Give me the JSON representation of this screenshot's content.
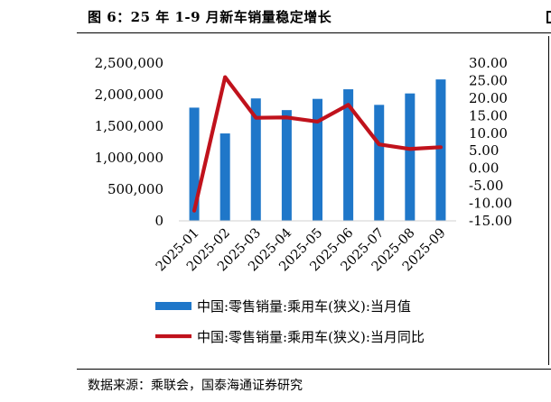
{
  "figure": {
    "title": "图 6：25 年 1-9 月新车销量稳定增长",
    "source": "数据来源：乘联会，国泰海通证券研究"
  },
  "chart_data": {
    "type": "bar",
    "categories": [
      "2025-01",
      "2025-02",
      "2025-03",
      "2025-04",
      "2025-05",
      "2025-06",
      "2025-07",
      "2025-08",
      "2025-09"
    ],
    "series": [
      {
        "name": "中国:零售销量:乘用车(狭义):当月值",
        "type": "bar",
        "axis": "left",
        "color": "#1f77c9",
        "values": [
          1794000,
          1385000,
          1940000,
          1755000,
          1933000,
          2085000,
          1838000,
          2019000,
          2241000
        ]
      },
      {
        "name": "中国:零售销量:乘用车(狭义):当月同比",
        "type": "line",
        "axis": "right",
        "color": "#c0121c",
        "values": [
          -12.1,
          26.0,
          14.4,
          14.5,
          13.3,
          18.1,
          6.8,
          5.5,
          6.0
        ]
      }
    ],
    "y_left": {
      "ylim": [
        0,
        2500000
      ],
      "ticks": [
        0,
        500000,
        1000000,
        1500000,
        2000000,
        2500000
      ],
      "tick_labels": [
        "0",
        "500,000",
        "1,000,000",
        "1,500,000",
        "2,000,000",
        "2,500,000"
      ]
    },
    "y_right": {
      "ylim": [
        -15,
        30
      ],
      "ticks": [
        -15,
        -10,
        -5,
        0,
        5,
        10,
        15,
        20,
        25,
        30
      ],
      "tick_labels": [
        "-15.00",
        "-10.00",
        "-5.00",
        "0.00",
        "5.00",
        "10.00",
        "15.00",
        "20.00",
        "25.00",
        "30.00"
      ]
    },
    "grid": false,
    "legend_position": "bottom"
  }
}
